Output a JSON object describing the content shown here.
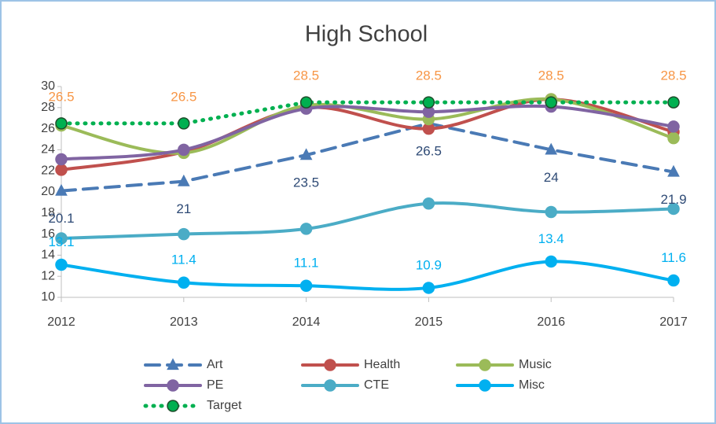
{
  "chart_data": {
    "type": "line",
    "title": "High School",
    "categories": [
      "2012",
      "2013",
      "2014",
      "2015",
      "2016",
      "2017"
    ],
    "ylim": [
      10,
      30
    ],
    "yticks": [
      10,
      12,
      14,
      16,
      18,
      20,
      22,
      24,
      26,
      28,
      30
    ],
    "grid": false,
    "legend": "bottom",
    "series": [
      {
        "name": "Art",
        "color": "#4a7ab5",
        "dash": "dashed",
        "marker": "triangle",
        "smooth": false,
        "values": [
          20.1,
          21,
          23.5,
          26.5,
          24,
          21.9
        ],
        "label_color": "#2e4a75"
      },
      {
        "name": "Health",
        "color": "#c0504d",
        "dash": "solid",
        "marker": "circle",
        "smooth": true,
        "values": [
          22.1,
          23.8,
          28,
          26,
          28.8,
          25.7
        ]
      },
      {
        "name": "Music",
        "color": "#9bbb59",
        "dash": "solid",
        "marker": "circle",
        "smooth": true,
        "values": [
          26.3,
          23.7,
          28.2,
          26.9,
          28.8,
          25.1
        ]
      },
      {
        "name": "PE",
        "color": "#8064a2",
        "dash": "solid",
        "marker": "circle",
        "smooth": true,
        "values": [
          23.1,
          24,
          27.9,
          27.6,
          28.1,
          26.2
        ]
      },
      {
        "name": "CTE",
        "color": "#4bacc6",
        "dash": "solid",
        "marker": "circle",
        "smooth": true,
        "values": [
          15.6,
          16,
          16.5,
          18.9,
          18.1,
          18.4
        ]
      },
      {
        "name": "Misc",
        "color": "#00b0f0",
        "dash": "solid",
        "marker": "circle",
        "smooth": true,
        "values": [
          13.1,
          11.4,
          11.1,
          10.9,
          13.4,
          11.6
        ],
        "label_color": "#00b0f0"
      },
      {
        "name": "Target",
        "color": "#00b050",
        "dash": "dotted",
        "marker": "circle",
        "smooth": false,
        "values": [
          26.5,
          26.5,
          28.5,
          28.5,
          28.5,
          28.5
        ],
        "label_color": "#f79646",
        "marker_edge": "#1e4d2b"
      }
    ]
  }
}
